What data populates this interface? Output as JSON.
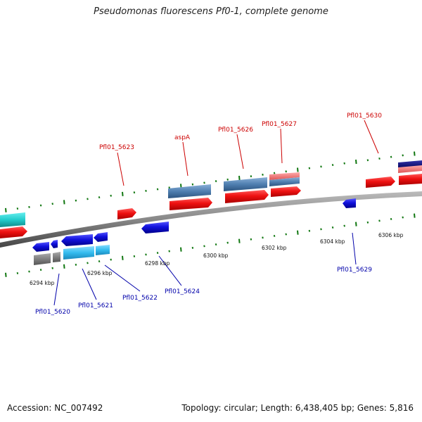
{
  "header": {
    "title": "Pseudomonas fluorescens Pf0-1, complete genome"
  },
  "footer": {
    "accession": "Accession: NC_007492",
    "summary": "Topology: circular; Length: 6,438,405 bp; Genes: 5,816"
  },
  "colors": {
    "forward_gene": "#ee1111",
    "forward_light": "#ee7777",
    "reverse_gene": "#1111dd",
    "cds_steel": "#4f7fb0",
    "cyan_feature": "#22cccc",
    "light_blue": "#33bbee",
    "navy": "#111177",
    "grey_feature": "#777777",
    "tick_green": "#117711"
  },
  "scale_labels": [
    {
      "text": "6294 kbp"
    },
    {
      "text": "6296 kbp"
    },
    {
      "text": "6298 kbp"
    },
    {
      "text": "6300 kbp"
    },
    {
      "text": "6302 kbp"
    },
    {
      "text": "6304 kbp"
    },
    {
      "text": "6306 kbp"
    }
  ],
  "gene_labels_forward": [
    {
      "text": "Pfl01_5623"
    },
    {
      "text": "aspA"
    },
    {
      "text": "Pfl01_5626"
    },
    {
      "text": "Pfl01_5627"
    },
    {
      "text": "Pfl01_5630"
    }
  ],
  "gene_labels_reverse": [
    {
      "text": "Pfl01_5620"
    },
    {
      "text": "Pfl01_5621"
    },
    {
      "text": "Pfl01_5622"
    },
    {
      "text": "Pfl01_5624"
    },
    {
      "text": "Pfl01_5629"
    }
  ]
}
